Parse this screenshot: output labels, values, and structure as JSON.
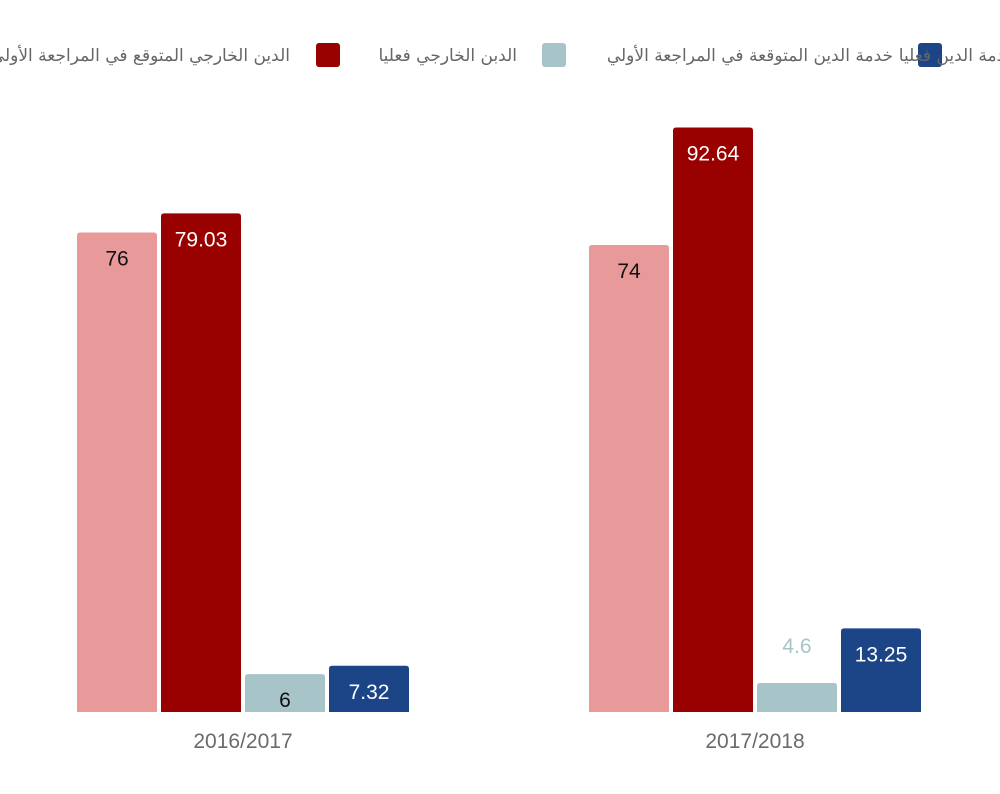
{
  "chart_data": {
    "type": "bar",
    "title": "",
    "xlabel": "",
    "ylabel": "",
    "ylim": [
      0,
      100
    ],
    "grid": false,
    "legend_position": "top",
    "categories": [
      "2016/2017",
      "2017/2018"
    ],
    "series": [
      {
        "name": "الدين الخارجي المتوقع في المراجعة الأولي",
        "color": "#e89a9a",
        "label_color": "#111111",
        "values": [
          76,
          74
        ]
      },
      {
        "name": "الدبن الخارجي فعليا",
        "color": "#990000",
        "label_color": "#ffffff",
        "values": [
          79.03,
          92.64
        ]
      },
      {
        "name": "خدمة الدين المتوقعة في المراجعة الأولي",
        "color": "#a7c4c9",
        "label_color": "#111111",
        "values": [
          6,
          4.6
        ]
      },
      {
        "name": "خدمة الدين فعليا",
        "color": "#1c4587",
        "label_color": "#ffffff",
        "values": [
          7.32,
          13.25
        ]
      }
    ],
    "value_labels": [
      [
        "76",
        "79.03",
        "6",
        "7.32"
      ],
      [
        "74",
        "92.64",
        "4.6",
        "13.25"
      ]
    ]
  }
}
